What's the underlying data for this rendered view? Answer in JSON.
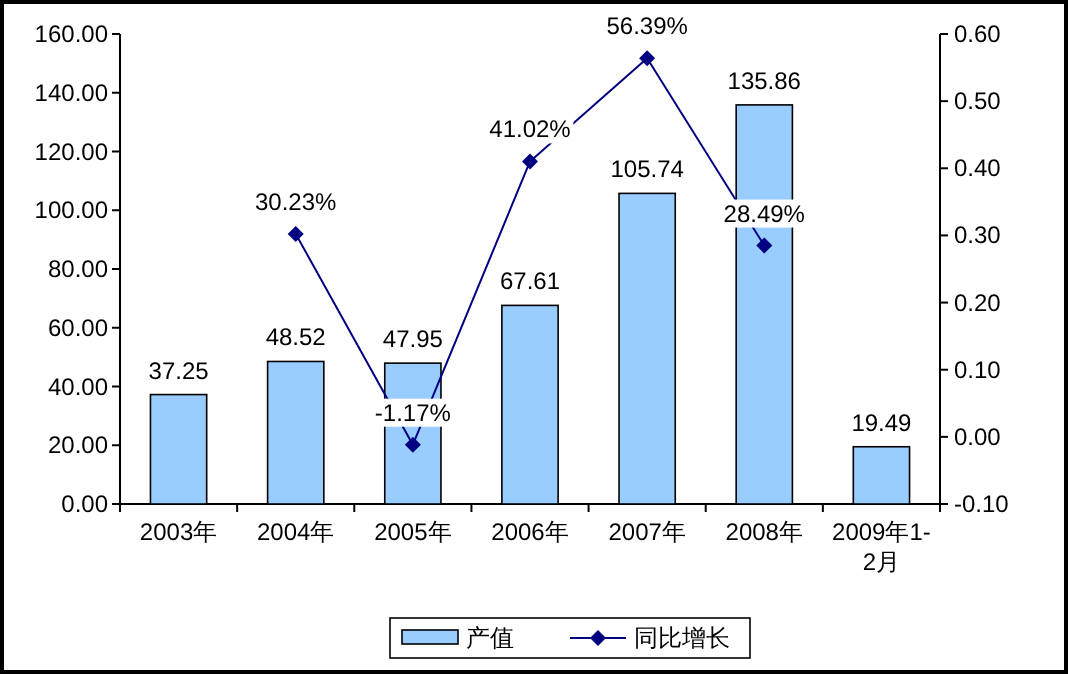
{
  "chart_data": {
    "type": "bar",
    "categories": [
      "2003年",
      "2004年",
      "2005年",
      "2006年",
      "2007年",
      "2008年",
      "2009年1-2月"
    ],
    "series": [
      {
        "name": "产值",
        "color": "#99ccff",
        "values": [
          37.25,
          48.52,
          47.95,
          67.61,
          105.74,
          135.86,
          19.49
        ]
      },
      {
        "name": "同比增长",
        "type": "line",
        "axis": "y2",
        "color": "#000080",
        "marker": "diamond",
        "values": [
          null,
          0.3023,
          -0.0117,
          0.4102,
          0.5639,
          0.2849,
          null
        ],
        "value_labels": [
          null,
          "30.23%",
          "-1.17%",
          "41.02%",
          "56.39%",
          "28.49%",
          null
        ]
      }
    ],
    "data_labels": true,
    "ylim": [
      0,
      160
    ],
    "yticks": [
      {
        "value": 0,
        "label": "0.00"
      },
      {
        "value": 20,
        "label": "20.00"
      },
      {
        "value": 40,
        "label": "40.00"
      },
      {
        "value": 60,
        "label": "60.00"
      },
      {
        "value": 80,
        "label": "80.00"
      },
      {
        "value": 100,
        "label": "100.00"
      },
      {
        "value": 120,
        "label": "120.00"
      },
      {
        "value": 140,
        "label": "140.00"
      },
      {
        "value": 160,
        "label": "160.00"
      }
    ],
    "y2lim": [
      -0.1,
      0.6
    ],
    "y2ticks": [
      {
        "value": -0.1,
        "label": "-0.10"
      },
      {
        "value": 0,
        "label": "0.00"
      },
      {
        "value": 0.1,
        "label": "0.10"
      },
      {
        "value": 0.2,
        "label": "0.20"
      },
      {
        "value": 0.3,
        "label": "0.30"
      },
      {
        "value": 0.4,
        "label": "0.40"
      },
      {
        "value": 0.5,
        "label": "0.50"
      },
      {
        "value": 0.6,
        "label": "0.60"
      }
    ],
    "grid": false,
    "legend": "bottom"
  }
}
